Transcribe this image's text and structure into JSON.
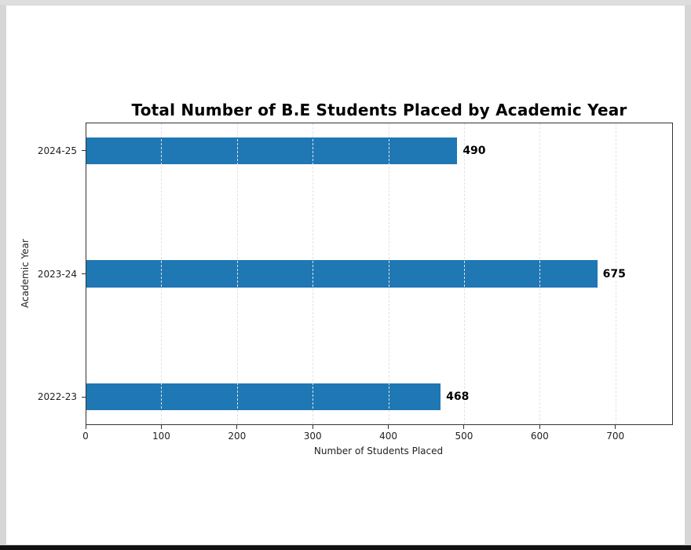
{
  "chart_data": {
    "type": "bar",
    "orientation": "horizontal",
    "title": "Total Number of B.E Students Placed by Academic Year",
    "xlabel": "Number of Students Placed",
    "ylabel": "Academic Year",
    "categories": [
      "2022-23",
      "2023-24",
      "2024-25"
    ],
    "values": [
      468,
      675,
      490
    ],
    "data_labels": [
      "468",
      "675",
      "490"
    ],
    "xlim": [
      0,
      776
    ],
    "xticks": [
      0,
      100,
      200,
      300,
      400,
      500,
      600,
      700
    ],
    "xtick_labels": [
      "0",
      "100",
      "200",
      "300",
      "400",
      "500",
      "600",
      "700"
    ],
    "grid": {
      "axis": "x",
      "style": "dashed"
    },
    "bar_color": "#1f77b4",
    "legend": null
  },
  "labels": {
    "title": "Total Number of B.E Students Placed by Academic Year",
    "xlabel": "Number of Students Placed",
    "ylabel": "Academic Year"
  }
}
